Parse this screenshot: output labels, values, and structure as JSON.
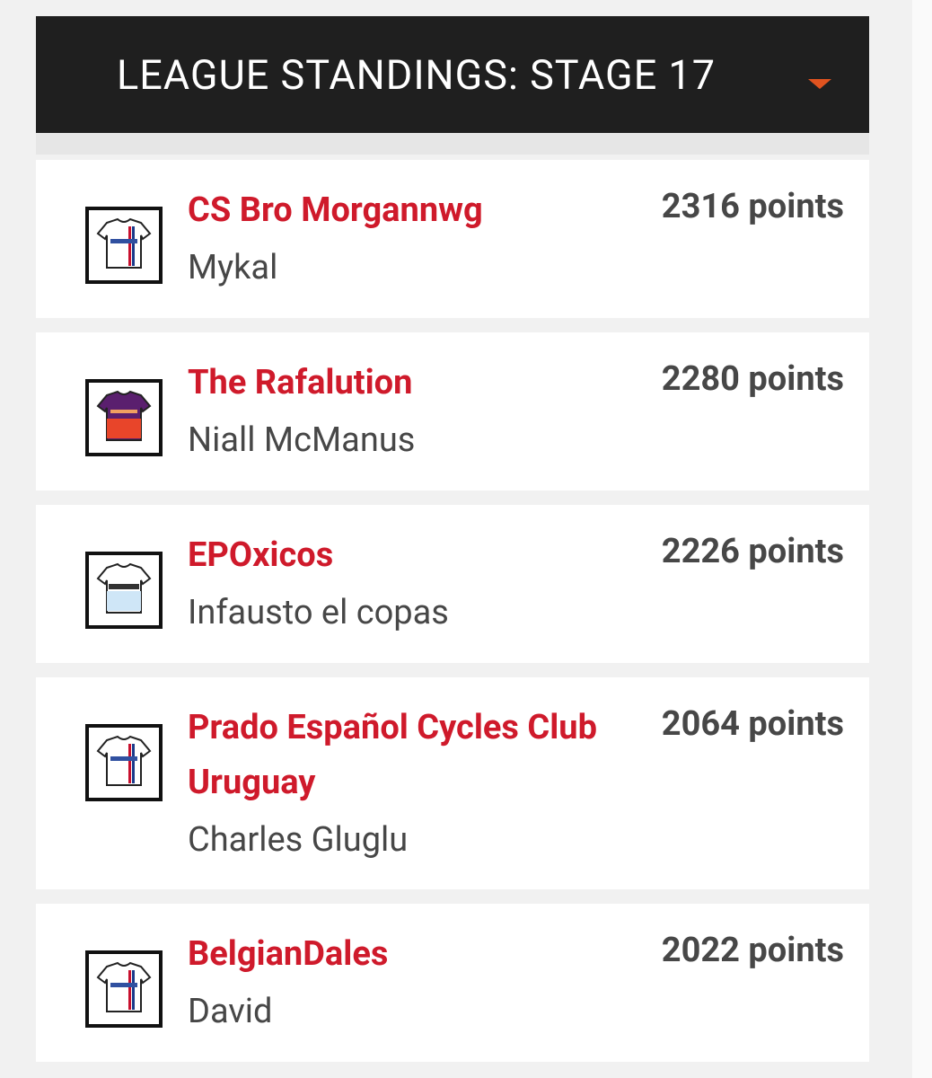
{
  "header": {
    "title": "LEAGUE STANDINGS: STAGE 17"
  },
  "standings": [
    {
      "team": "CS Bro Morgannwg",
      "manager": "Mykal",
      "points": "2316 points"
    },
    {
      "team": "The Rafalution",
      "manager": "Niall McManus",
      "points": "2280 points"
    },
    {
      "team": "EPOxicos",
      "manager": "Infausto el copas",
      "points": "2226 points"
    },
    {
      "team": "Prado Español Cycles Club Uruguay",
      "manager": "Charles Gluglu",
      "points": "2064 points"
    },
    {
      "team": "BelgianDales",
      "manager": "David",
      "points": "2022 points"
    }
  ]
}
